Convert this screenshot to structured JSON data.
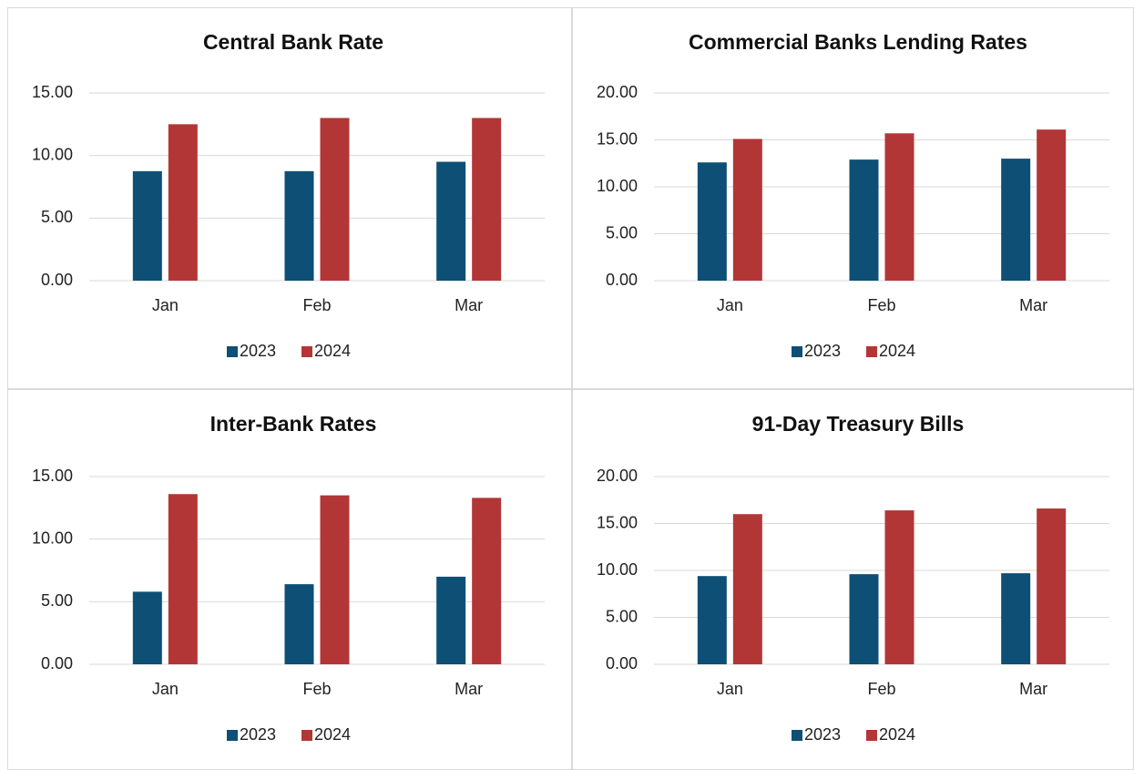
{
  "chart_data": [
    {
      "type": "bar",
      "title": "Central Bank Rate",
      "categories": [
        "Jan",
        "Feb",
        "Mar"
      ],
      "series": [
        {
          "name": "2023",
          "color": "#0e4f75",
          "values": [
            8.75,
            8.75,
            9.5
          ]
        },
        {
          "name": "2024",
          "color": "#b33636",
          "values": [
            12.5,
            13.0,
            13.0
          ]
        }
      ],
      "ylim": [
        0,
        15
      ],
      "yticks": [
        {
          "value": 0,
          "label": "0.00"
        },
        {
          "value": 5,
          "label": "5.00"
        },
        {
          "value": 10,
          "label": "10.00"
        },
        {
          "value": 15,
          "label": "15.00"
        }
      ],
      "grid": true,
      "legend": "bottom"
    },
    {
      "type": "bar",
      "title": "Commercial Banks Lending Rates",
      "categories": [
        "Jan",
        "Feb",
        "Mar"
      ],
      "series": [
        {
          "name": "2023",
          "color": "#0e4f75",
          "values": [
            12.6,
            12.9,
            13.0
          ]
        },
        {
          "name": "2024",
          "color": "#b33636",
          "values": [
            15.1,
            15.7,
            16.1
          ]
        }
      ],
      "ylim": [
        0,
        20
      ],
      "yticks": [
        {
          "value": 0,
          "label": "0.00"
        },
        {
          "value": 5,
          "label": "5.00"
        },
        {
          "value": 10,
          "label": "10.00"
        },
        {
          "value": 15,
          "label": "15.00"
        },
        {
          "value": 20,
          "label": "20.00"
        }
      ],
      "grid": true,
      "legend": "bottom"
    },
    {
      "type": "bar",
      "title": "Inter-Bank Rates",
      "categories": [
        "Jan",
        "Feb",
        "Mar"
      ],
      "series": [
        {
          "name": "2023",
          "color": "#0e4f75",
          "values": [
            5.8,
            6.4,
            7.0
          ]
        },
        {
          "name": "2024",
          "color": "#b33636",
          "values": [
            13.6,
            13.5,
            13.3
          ]
        }
      ],
      "ylim": [
        0,
        15
      ],
      "yticks": [
        {
          "value": 0,
          "label": "0.00"
        },
        {
          "value": 5,
          "label": "5.00"
        },
        {
          "value": 10,
          "label": "10.00"
        },
        {
          "value": 15,
          "label": "15.00"
        }
      ],
      "grid": true,
      "legend": "bottom"
    },
    {
      "type": "bar",
      "title": "91-Day Treasury Bills",
      "categories": [
        "Jan",
        "Feb",
        "Mar"
      ],
      "series": [
        {
          "name": "2023",
          "color": "#0e4f75",
          "values": [
            9.4,
            9.6,
            9.7
          ]
        },
        {
          "name": "2024",
          "color": "#b33636",
          "values": [
            16.0,
            16.4,
            16.6
          ]
        }
      ],
      "ylim": [
        0,
        20
      ],
      "yticks": [
        {
          "value": 0,
          "label": "0.00"
        },
        {
          "value": 5,
          "label": "5.00"
        },
        {
          "value": 10,
          "label": "10.00"
        },
        {
          "value": 15,
          "label": "15.00"
        },
        {
          "value": 20,
          "label": "20.00"
        }
      ],
      "grid": true,
      "legend": "bottom"
    }
  ]
}
